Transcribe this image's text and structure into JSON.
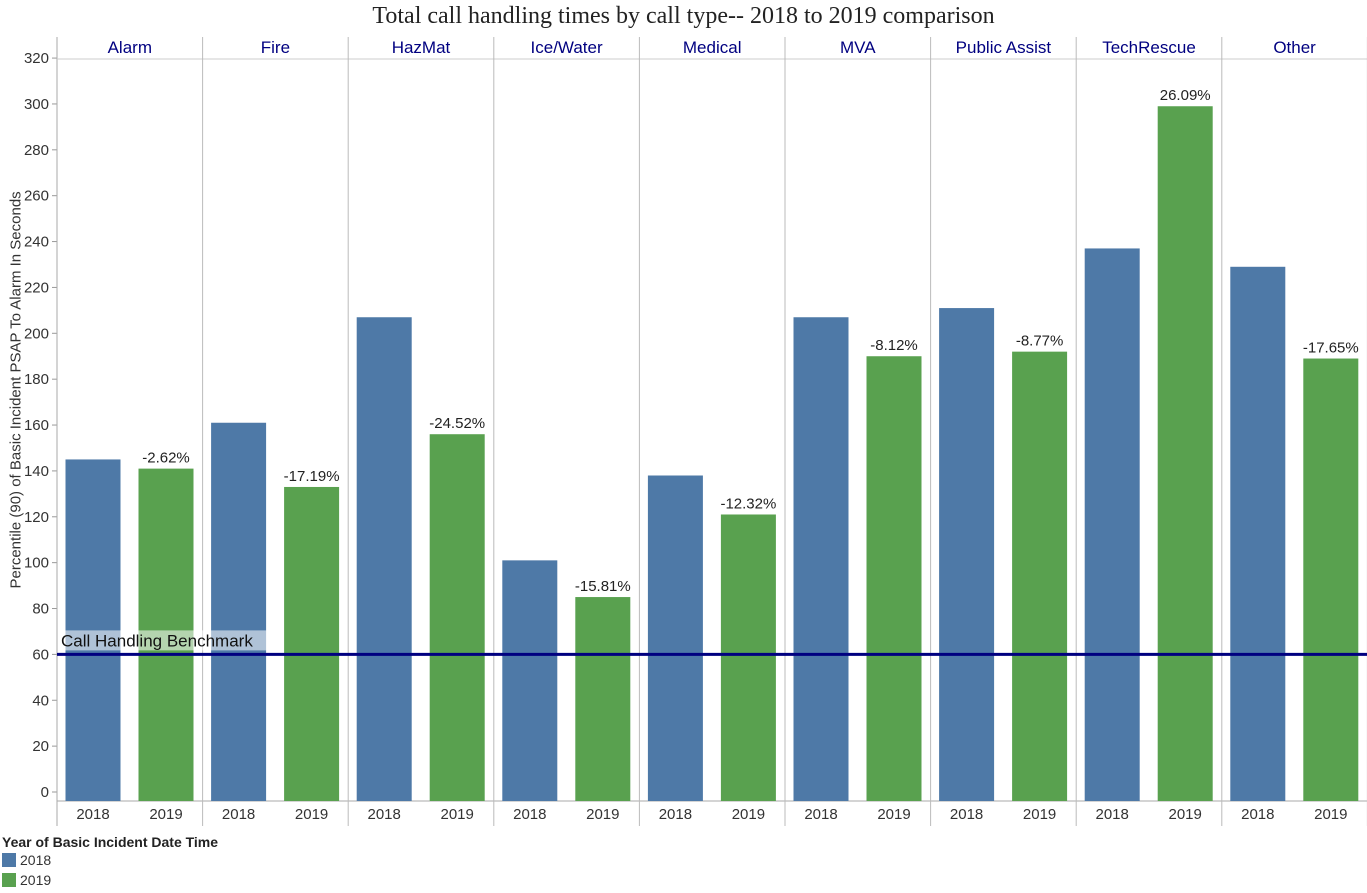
{
  "chart_data": {
    "type": "bar",
    "title": "Total call handling times by call type-- 2018 to 2019 comparison",
    "ylabel": "Percentile (90) of Basic Incident PSAP To Alarm In Seconds",
    "ylim": [
      0,
      320
    ],
    "yticks": [
      0,
      20,
      40,
      60,
      80,
      100,
      120,
      140,
      160,
      180,
      200,
      220,
      240,
      260,
      280,
      300,
      320
    ],
    "categories": [
      "Alarm",
      "Fire",
      "HazMat",
      "Ice/Water",
      "Medical",
      "MVA",
      "Public Assist",
      "TechRescue",
      "Other"
    ],
    "series": [
      {
        "name": "2018",
        "color": "#4e79a7",
        "values": [
          145,
          161,
          207,
          101,
          138,
          207,
          211,
          237,
          229
        ]
      },
      {
        "name": "2019",
        "color": "#59a14f",
        "values": [
          141,
          133,
          156,
          85,
          121,
          190,
          192,
          299,
          189
        ]
      }
    ],
    "change_labels": [
      "-2.62%",
      "-17.19%",
      "-24.52%",
      "-15.81%",
      "-12.32%",
      "-8.12%",
      "-8.77%",
      "26.09%",
      "-17.65%"
    ],
    "benchmark": {
      "value": 60,
      "label": "Call Handling Benchmark",
      "color": "#000080"
    },
    "legend": {
      "title": "Year of Basic Incident Date Time",
      "position": "bottom-left"
    },
    "category_label_color": "#000080",
    "grid": false
  }
}
